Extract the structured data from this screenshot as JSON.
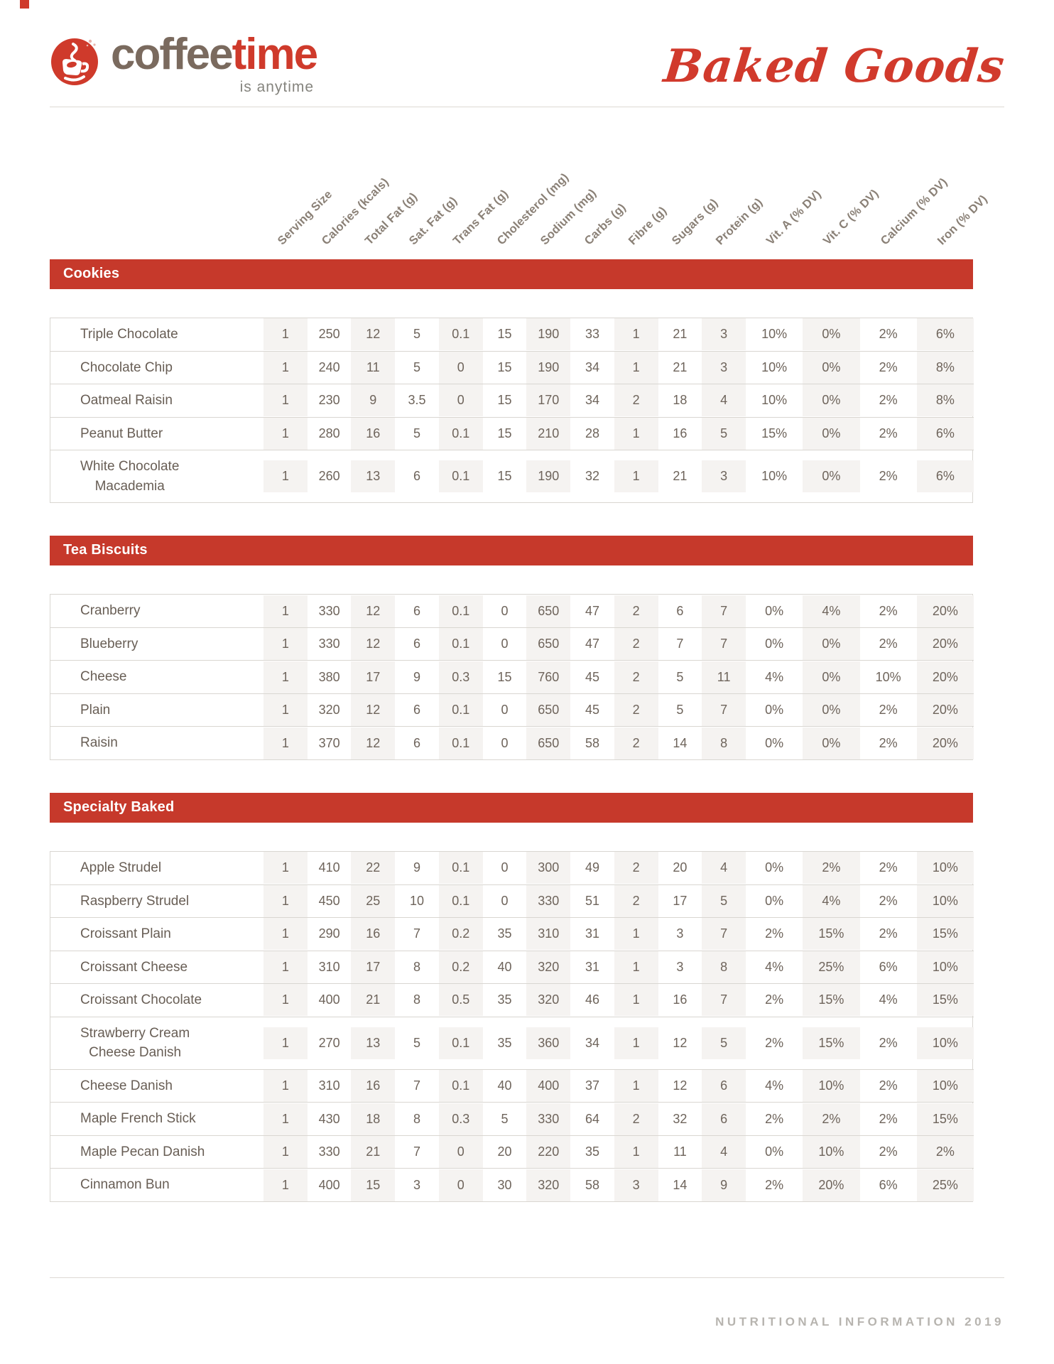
{
  "header": {
    "logo": {
      "word1": "coffee",
      "word2": "time",
      "tagline": "is anytime"
    },
    "title_script": "Baked Goods"
  },
  "columns": [
    "Serving Size",
    "Calories (kcals)",
    "Total Fat (g)",
    "Sat. Fat (g)",
    "Trans Fat (g)",
    "Cholesterol (mg)",
    "Sodium (mg)",
    "Carbs (g)",
    "Fibre (g)",
    "Sugars (g)",
    "Protein (g)",
    "Vit. A (% DV)",
    "Vit. C (% DV)",
    "Calcium (% DV)",
    "Iron (% DV)"
  ],
  "sections": [
    {
      "title": "Cookies",
      "rows": [
        {
          "name": "Triple Chocolate",
          "values": [
            "1",
            "250",
            "12",
            "5",
            "0.1",
            "15",
            "190",
            "33",
            "1",
            "21",
            "3",
            "10%",
            "0%",
            "2%",
            "6%"
          ]
        },
        {
          "name": "Chocolate Chip",
          "values": [
            "1",
            "240",
            "11",
            "5",
            "0",
            "15",
            "190",
            "34",
            "1",
            "21",
            "3",
            "10%",
            "0%",
            "2%",
            "8%"
          ]
        },
        {
          "name": "Oatmeal Raisin",
          "values": [
            "1",
            "230",
            "9",
            "3.5",
            "0",
            "15",
            "170",
            "34",
            "2",
            "18",
            "4",
            "10%",
            "0%",
            "2%",
            "8%"
          ]
        },
        {
          "name": "Peanut Butter",
          "values": [
            "1",
            "280",
            "16",
            "5",
            "0.1",
            "15",
            "210",
            "28",
            "1",
            "16",
            "5",
            "15%",
            "0%",
            "2%",
            "6%"
          ]
        },
        {
          "name": "White Chocolate\nMacademia",
          "values": [
            "1",
            "260",
            "13",
            "6",
            "0.1",
            "15",
            "190",
            "32",
            "1",
            "21",
            "3",
            "10%",
            "0%",
            "2%",
            "6%"
          ]
        }
      ]
    },
    {
      "title": "Tea Biscuits",
      "rows": [
        {
          "name": "Cranberry",
          "values": [
            "1",
            "330",
            "12",
            "6",
            "0.1",
            "0",
            "650",
            "47",
            "2",
            "6",
            "7",
            "0%",
            "4%",
            "2%",
            "20%"
          ]
        },
        {
          "name": "Blueberry",
          "values": [
            "1",
            "330",
            "12",
            "6",
            "0.1",
            "0",
            "650",
            "47",
            "2",
            "7",
            "7",
            "0%",
            "0%",
            "2%",
            "20%"
          ]
        },
        {
          "name": "Cheese",
          "values": [
            "1",
            "380",
            "17",
            "9",
            "0.3",
            "15",
            "760",
            "45",
            "2",
            "5",
            "11",
            "4%",
            "0%",
            "10%",
            "20%"
          ]
        },
        {
          "name": "Plain",
          "values": [
            "1",
            "320",
            "12",
            "6",
            "0.1",
            "0",
            "650",
            "45",
            "2",
            "5",
            "7",
            "0%",
            "0%",
            "2%",
            "20%"
          ]
        },
        {
          "name": "Raisin",
          "values": [
            "1",
            "370",
            "12",
            "6",
            "0.1",
            "0",
            "650",
            "58",
            "2",
            "14",
            "8",
            "0%",
            "0%",
            "2%",
            "20%"
          ]
        }
      ]
    },
    {
      "title": "Specialty Baked",
      "rows": [
        {
          "name": "Apple Strudel",
          "values": [
            "1",
            "410",
            "22",
            "9",
            "0.1",
            "0",
            "300",
            "49",
            "2",
            "20",
            "4",
            "0%",
            "2%",
            "2%",
            "10%"
          ]
        },
        {
          "name": "Raspberry Strudel",
          "values": [
            "1",
            "450",
            "25",
            "10",
            "0.1",
            "0",
            "330",
            "51",
            "2",
            "17",
            "5",
            "0%",
            "4%",
            "2%",
            "10%"
          ]
        },
        {
          "name": "Croissant Plain",
          "values": [
            "1",
            "290",
            "16",
            "7",
            "0.2",
            "35",
            "310",
            "31",
            "1",
            "3",
            "7",
            "2%",
            "15%",
            "2%",
            "15%"
          ]
        },
        {
          "name": "Croissant Cheese",
          "values": [
            "1",
            "310",
            "17",
            "8",
            "0.2",
            "40",
            "320",
            "31",
            "1",
            "3",
            "8",
            "4%",
            "25%",
            "6%",
            "10%"
          ]
        },
        {
          "name": "Croissant Chocolate",
          "values": [
            "1",
            "400",
            "21",
            "8",
            "0.5",
            "35",
            "320",
            "46",
            "1",
            "16",
            "7",
            "2%",
            "15%",
            "4%",
            "15%"
          ]
        },
        {
          "name": "Strawberry Cream\nCheese Danish",
          "values": [
            "1",
            "270",
            "13",
            "5",
            "0.1",
            "35",
            "360",
            "34",
            "1",
            "12",
            "5",
            "2%",
            "15%",
            "2%",
            "10%"
          ]
        },
        {
          "name": "Cheese Danish",
          "values": [
            "1",
            "310",
            "16",
            "7",
            "0.1",
            "40",
            "400",
            "37",
            "1",
            "12",
            "6",
            "4%",
            "10%",
            "2%",
            "10%"
          ]
        },
        {
          "name": "Maple French Stick",
          "values": [
            "1",
            "430",
            "18",
            "8",
            "0.3",
            "5",
            "330",
            "64",
            "2",
            "32",
            "6",
            "2%",
            "2%",
            "2%",
            "15%"
          ]
        },
        {
          "name": "Maple Pecan Danish",
          "values": [
            "1",
            "330",
            "21",
            "7",
            "0",
            "20",
            "220",
            "35",
            "1",
            "11",
            "4",
            "0%",
            "10%",
            "2%",
            "2%"
          ]
        },
        {
          "name": "Cinnamon Bun",
          "values": [
            "1",
            "400",
            "15",
            "3",
            "0",
            "30",
            "320",
            "58",
            "3",
            "14",
            "9",
            "2%",
            "20%",
            "6%",
            "25%"
          ]
        }
      ]
    }
  ],
  "footer": {
    "text": "NUTRITIONAL INFORMATION 2019"
  },
  "colors": {
    "accent_red": "#c6392b",
    "logo_red": "#cf3a2b",
    "logo_brown": "#7a6a5e",
    "header_label": "#8a8076",
    "cell_text": "#6e645b",
    "column_shade": "#f5f3f1",
    "footer_text": "#b7b4af"
  }
}
